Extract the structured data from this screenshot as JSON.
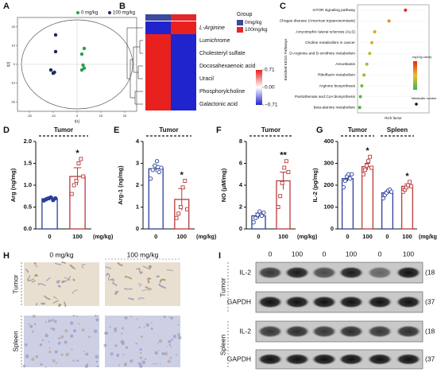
{
  "figure": {
    "panel_labels": [
      "A",
      "B",
      "C",
      "D",
      "E",
      "F",
      "G",
      "H",
      "I"
    ],
    "ihc": {
      "columns": [
        "0 mg/kg",
        "100 mg/kg"
      ],
      "rows": [
        "Tumor",
        "Spleen"
      ]
    },
    "blot": {
      "lanes": [
        "0",
        "100",
        "0",
        "100",
        "0",
        "100"
      ],
      "groups": [
        "Tumor",
        "Spleen"
      ],
      "proteins": [
        "IL-2",
        "GAPDH",
        "IL-2",
        "GAPDH"
      ],
      "sizes": [
        "(18 kDa)",
        "(37 kDa)",
        "(18 kDa)",
        "(37 kDa)"
      ]
    }
  },
  "chart_data": [
    {
      "type": "scatter",
      "xlabel": "t[1]",
      "ylabel": "t[2]",
      "xlim": [
        -25,
        25
      ],
      "ylim": [
        -25,
        25
      ],
      "xticks": [
        -20,
        -10,
        0,
        10,
        20
      ],
      "yticks": [
        -20,
        -10,
        0,
        10,
        20
      ],
      "series": [
        {
          "name": "0 mg/kg",
          "color": "#2e9e4f",
          "x": [
            3,
            2,
            2.5,
            3,
            2
          ],
          "y": [
            8.5,
            5.5,
            -0.4,
            -2,
            -3
          ]
        },
        {
          "name": "100 mg/kg",
          "color": "#1c2b5a",
          "x": [
            -9,
            -9,
            -11,
            -10,
            -9.5
          ],
          "y": [
            15.7,
            6.8,
            -3,
            -4.7,
            -4.2
          ]
        }
      ]
    },
    {
      "type": "heatmap",
      "legend_title": "Group",
      "rows": [
        "L-Arginine",
        "Lumichrome",
        "Cholesteryl sulfate",
        "Docosahexaenoic acid",
        "Uracil",
        "Phosphorylcholine",
        "Galactonic acid"
      ],
      "columns": [
        "0mg/kg",
        "100mg/kg"
      ],
      "column_colors": [
        "#3b4a9c",
        "#e3262b"
      ],
      "values": [
        [
          -0.71,
          0.71
        ],
        [
          0.71,
          -0.71
        ],
        [
          0.71,
          -0.71
        ],
        [
          0.71,
          -0.71
        ],
        [
          0.71,
          -0.71
        ],
        [
          0.71,
          -0.71
        ],
        [
          0.71,
          -0.71
        ]
      ],
      "clim": [
        -0.71,
        0.71
      ],
      "cticks": [
        0.71,
        {
          "value": 0,
          "label": "0.00"
        },
        {
          "value": -0.71,
          "label": "−0.71"
        }
      ]
    },
    {
      "type": "dot",
      "xlabel": "Rich factor",
      "ylabel": "Enriched KEGG Pathways",
      "legend_titles": [
        "-log10(p.value)",
        "Metabolite number"
      ],
      "xlim": [
        0,
        1
      ],
      "categories": [
        "mTOR signaling pathway",
        "Chagas disease (American trypanosomiasis)",
        "Amyotrophic lateral sclerosis (ALS)",
        "Choline metabolism in cancer",
        "D-Arginine and D-ornithine metabolism",
        "Amoebiasis",
        "Riboflavin metabolism",
        "Arginine biosynthesis",
        "Pantothenate and CoA biosynthesis",
        "beta-alanine metabolism"
      ],
      "values": [
        0.67,
        0.44,
        0.24,
        0.2,
        0.17,
        0.13,
        0.09,
        0.06,
        0.04,
        0.03
      ],
      "colors": [
        "#e3261f",
        "#e88a26",
        "#d7a62a",
        "#cdb52d",
        "#bdba2f",
        "#a7bd33",
        "#8dbf38",
        "#6bbf40",
        "#52b848",
        "#44b24e"
      ],
      "label_colors": [
        "#222",
        "#222",
        "#222",
        "#222",
        "#222",
        "#222",
        "#222",
        "#d62728",
        "#222",
        "#222"
      ]
    },
    {
      "type": "bar",
      "ylabel": "Arg (ng/mg)",
      "groups": [
        "Tumor"
      ],
      "categories": [
        "0",
        "100"
      ],
      "unit": "(mg/kg)",
      "values": [
        0.69,
        1.2
      ],
      "errors": [
        0.03,
        0.2
      ],
      "points": [
        [
          0.65,
          0.68,
          0.7,
          0.72,
          0.66,
          0.7
        ],
        [
          0.8,
          1.0,
          1.1,
          1.5,
          1.6,
          1.2
        ]
      ],
      "significance": [
        null,
        "*"
      ],
      "colors": [
        "#2c3e9a",
        "#b83a3a"
      ],
      "ylim": [
        0,
        2
      ],
      "yticks": [
        {
          "value": 0,
          "label": "0.0"
        },
        {
          "value": 0.5,
          "label": "0.5"
        },
        {
          "value": 1,
          "label": "1.0"
        },
        {
          "value": 1.5,
          "label": "1.5"
        },
        {
          "value": 2,
          "label": "2.0"
        }
      ]
    },
    {
      "type": "bar",
      "ylabel": "Arg-1 (ng/mg)",
      "groups": [
        "Tumor"
      ],
      "categories": [
        "0",
        "100"
      ],
      "unit": "(mg/kg)",
      "values": [
        2.75,
        1.35
      ],
      "errors": [
        0.15,
        0.5
      ],
      "points": [
        [
          2.3,
          2.7,
          2.9,
          3.1,
          2.6,
          2.8
        ],
        [
          0.5,
          0.7,
          1.0,
          1.9,
          2.2,
          0.9
        ]
      ],
      "significance": [
        null,
        "*"
      ],
      "colors": [
        "#2c3e9a",
        "#b83a3a"
      ],
      "ylim": [
        0,
        4
      ],
      "yticks": [
        0,
        1,
        2,
        3,
        4
      ]
    },
    {
      "type": "bar",
      "ylabel": "NO (μM/mg)",
      "groups": [
        "Tumor"
      ],
      "categories": [
        "0",
        "100"
      ],
      "unit": "(mg/kg)",
      "values": [
        1.2,
        4.4
      ],
      "errors": [
        0.25,
        0.8
      ],
      "points": [
        [
          0.6,
          1.0,
          1.3,
          1.6,
          1.2,
          1.5
        ],
        [
          2.0,
          3.0,
          4.2,
          5.6,
          6.2,
          5.2
        ]
      ],
      "significance": [
        null,
        "**"
      ],
      "colors": [
        "#2c3e9a",
        "#b83a3a"
      ],
      "ylim": [
        0,
        8
      ],
      "yticks": [
        0,
        2,
        4,
        6,
        8
      ]
    },
    {
      "type": "bar",
      "ylabel": "IL-2 (pg/mg)",
      "groups": [
        "Tumor",
        "Spleen"
      ],
      "categories": [
        "0",
        "100",
        "0",
        "100"
      ],
      "unit": "(mg/kg)",
      "values": [
        230,
        285,
        165,
        195
      ],
      "errors": [
        12,
        15,
        8,
        10
      ],
      "points": [
        [
          190,
          220,
          240,
          250,
          230,
          250
        ],
        [
          250,
          270,
          290,
          310,
          330,
          280
        ],
        [
          140,
          155,
          165,
          175,
          180,
          170
        ],
        [
          170,
          180,
          190,
          200,
          215,
          195
        ]
      ],
      "significance": [
        null,
        "*",
        null,
        "*"
      ],
      "colors": [
        "#2c3e9a",
        "#b83a3a",
        "#2c3e9a",
        "#b83a3a"
      ],
      "ylim": [
        0,
        400
      ],
      "yticks": [
        0,
        100,
        200,
        300,
        400
      ]
    }
  ]
}
